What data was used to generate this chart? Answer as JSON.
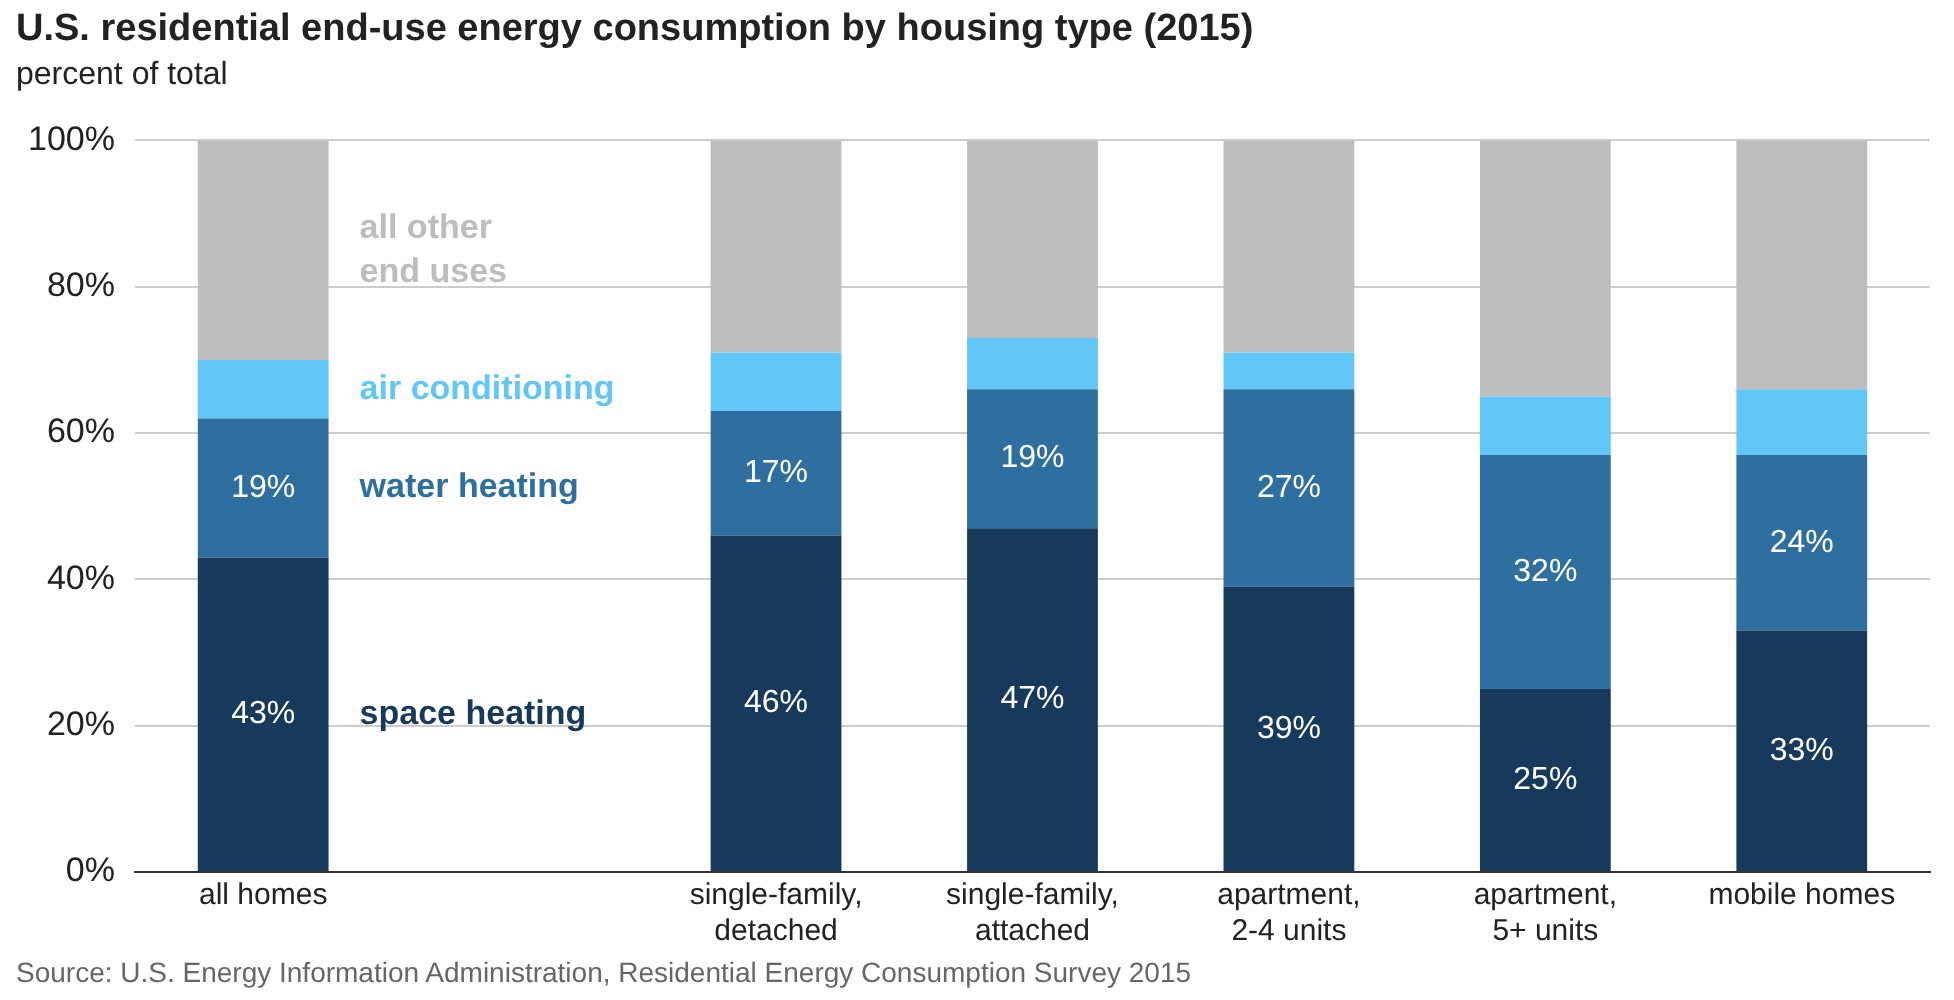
{
  "chart_data": {
    "type": "bar",
    "title": "U.S. residential end-use energy consumption by housing type (2015)",
    "subtitle": "percent of total",
    "categories": [
      "all homes",
      null,
      "single-family,\ndetached",
      "single-family,\nattached",
      "apartment,\n2-4 units",
      "apartment,\n5+ units",
      "mobile homes"
    ],
    "stacked": true,
    "legend": false,
    "grid": "y",
    "series": [
      {
        "name": "space heating",
        "color": "#173a5c",
        "values": [
          43,
          null,
          46,
          47,
          39,
          25,
          33
        ],
        "value_labels": [
          "43%",
          null,
          "46%",
          "47%",
          "39%",
          "25%",
          "33%"
        ]
      },
      {
        "name": "water heating",
        "color": "#2f6f9f",
        "values": [
          19,
          null,
          17,
          19,
          27,
          32,
          24
        ],
        "value_labels": [
          "19%",
          null,
          "17%",
          "19%",
          "27%",
          "32%",
          "24%"
        ]
      },
      {
        "name": "air conditioning",
        "color": "#62c6f6",
        "values": [
          8,
          null,
          8,
          7,
          5,
          8,
          9
        ]
      },
      {
        "name": "all other\nend uses",
        "color": "#bdbdbd",
        "values": [
          30,
          null,
          29,
          27,
          29,
          35,
          34
        ]
      }
    ],
    "ylim": [
      0,
      100
    ],
    "yticks": [
      {
        "value": 0,
        "label": "0%"
      },
      {
        "value": 20,
        "label": "20%"
      },
      {
        "value": 40,
        "label": "40%"
      },
      {
        "value": 60,
        "label": "60%"
      },
      {
        "value": 80,
        "label": "80%"
      },
      {
        "value": 100,
        "label": "100%"
      }
    ],
    "annotations": [
      "Source: U.S. Energy Information Administration, Residential Energy Consumption Survey 2015"
    ]
  }
}
